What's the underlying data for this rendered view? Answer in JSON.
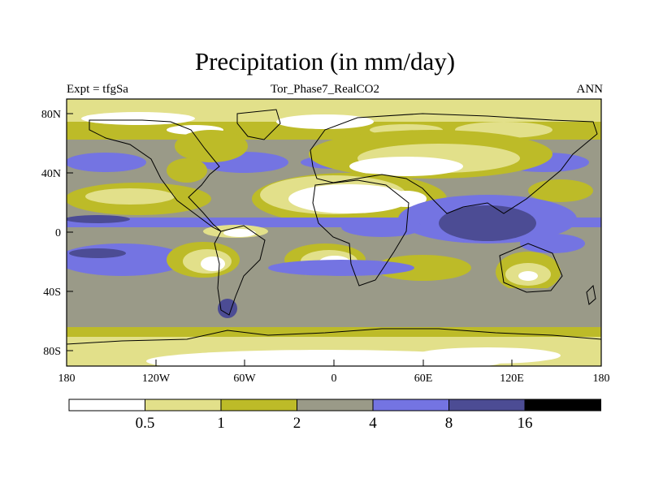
{
  "figure": {
    "title": "Precipitation (in mm/day)",
    "subtitle_left": "Expt = tfgSa",
    "subtitle_center": "Tor_Phase7_RealCO2",
    "subtitle_right": "ANN"
  },
  "axes": {
    "lat_ticks": [
      "80N",
      "40N",
      "0",
      "40S",
      "80S"
    ],
    "lon_ticks": [
      "180",
      "120W",
      "60W",
      "0",
      "60E",
      "120E",
      "180"
    ]
  },
  "colorbar": {
    "colors": [
      "#ffffff",
      "#e2e08a",
      "#bdbb28",
      "#9a9a88",
      "#7474e2",
      "#4c4c94",
      "#000000"
    ],
    "labels": [
      "0.5",
      "1",
      "2",
      "4",
      "8",
      "16"
    ]
  },
  "chart_data": {
    "type": "contour-map",
    "variable": "Precipitation",
    "units": "mm/day",
    "levels": [
      0.5,
      1,
      2,
      4,
      8,
      16
    ],
    "lon_range": [
      -180,
      180
    ],
    "lat_range": [
      -90,
      90
    ]
  }
}
